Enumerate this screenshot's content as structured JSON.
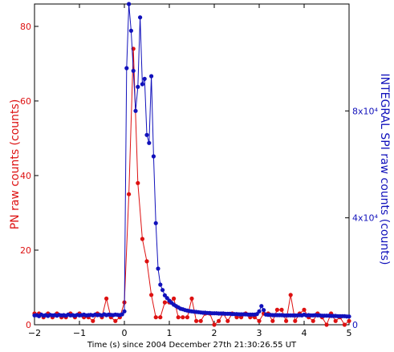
{
  "chart_data": {
    "type": "line",
    "xlabel": "Time (s) since 2004 December 27th 21:30:26.55 UT",
    "xlim": [
      -2,
      5
    ],
    "x_ticks": [
      "−2",
      "−1",
      "0",
      "1",
      "2",
      "3",
      "4",
      "5"
    ],
    "left_axis": {
      "label": "PN raw counts (counts)",
      "ylim": [
        0,
        86
      ],
      "ticks": [
        "0",
        "20",
        "40",
        "60",
        "80"
      ],
      "color": "#dd1111"
    },
    "right_axis": {
      "label": "INTEGRAL SPI raw counts (counts)",
      "ylim": [
        0,
        120000
      ],
      "ticks": [
        "0",
        "4x10⁴",
        "8x10⁴"
      ],
      "color": "#1111bb"
    },
    "series": [
      {
        "axis": "left",
        "color": "#dd1111",
        "x": [
          -2.0,
          -1.9,
          -1.8,
          -1.7,
          -1.6,
          -1.5,
          -1.4,
          -1.3,
          -1.2,
          -1.1,
          -1.0,
          -0.9,
          -0.8,
          -0.7,
          -0.6,
          -0.5,
          -0.4,
          -0.3,
          -0.2,
          -0.1,
          0.0,
          0.1,
          0.2,
          0.3,
          0.4,
          0.5,
          0.6,
          0.7,
          0.8,
          0.9,
          1.0,
          1.1,
          1.2,
          1.3,
          1.4,
          1.5,
          1.6,
          1.7,
          1.8,
          1.9,
          2.0,
          2.1,
          2.2,
          2.3,
          2.4,
          2.5,
          2.6,
          2.7,
          2.8,
          2.9,
          3.0,
          3.1,
          3.2,
          3.3,
          3.4,
          3.5,
          3.6,
          3.7,
          3.8,
          3.9,
          4.0,
          4.1,
          4.2,
          4.3,
          4.4,
          4.5,
          4.6,
          4.7,
          4.8,
          4.9,
          5.0
        ],
        "values": [
          3,
          3,
          2,
          3,
          2,
          3,
          2,
          2,
          3,
          2,
          3,
          2,
          2,
          1,
          3,
          2,
          7,
          2,
          1,
          2,
          6,
          35,
          74,
          38,
          23,
          17,
          8,
          2,
          2,
          6,
          6,
          7,
          2,
          2,
          2,
          7,
          1,
          1,
          3,
          3,
          0,
          1,
          3,
          1,
          3,
          2,
          2,
          3,
          2,
          2,
          1,
          3,
          3,
          1,
          4,
          4,
          1,
          8,
          1,
          3,
          4,
          2,
          1,
          3,
          2,
          0,
          3,
          1,
          2,
          0,
          1
        ]
      },
      {
        "axis": "right",
        "color": "#1111bb",
        "x": [
          -2.0,
          -1.95,
          -1.9,
          -1.85,
          -1.8,
          -1.75,
          -1.7,
          -1.65,
          -1.6,
          -1.55,
          -1.5,
          -1.45,
          -1.4,
          -1.35,
          -1.3,
          -1.25,
          -1.2,
          -1.15,
          -1.1,
          -1.05,
          -1.0,
          -0.95,
          -0.9,
          -0.85,
          -0.8,
          -0.75,
          -0.7,
          -0.65,
          -0.6,
          -0.55,
          -0.5,
          -0.45,
          -0.4,
          -0.35,
          -0.3,
          -0.25,
          -0.2,
          -0.15,
          -0.1,
          -0.05,
          0.0,
          0.05,
          0.1,
          0.15,
          0.2,
          0.25,
          0.3,
          0.35,
          0.4,
          0.45,
          0.5,
          0.55,
          0.6,
          0.65,
          0.7,
          0.75,
          0.8,
          0.85,
          0.9,
          0.95,
          1.0,
          1.05,
          1.1,
          1.15,
          1.2,
          1.25,
          1.3,
          1.35,
          1.4,
          1.45,
          1.5,
          1.55,
          1.6,
          1.65,
          1.7,
          1.75,
          1.8,
          1.85,
          1.9,
          1.95,
          2.0,
          2.05,
          2.1,
          2.15,
          2.2,
          2.25,
          2.3,
          2.35,
          2.4,
          2.45,
          2.5,
          2.55,
          2.6,
          2.65,
          2.7,
          2.75,
          2.8,
          2.85,
          2.9,
          2.95,
          3.0,
          3.05,
          3.1,
          3.15,
          3.2,
          3.25,
          3.3,
          3.35,
          3.4,
          3.45,
          3.5,
          3.55,
          3.6,
          3.65,
          3.7,
          3.75,
          3.8,
          3.85,
          3.9,
          3.95,
          4.0,
          4.05,
          4.1,
          4.15,
          4.2,
          4.25,
          4.3,
          4.35,
          4.4,
          4.45,
          4.5,
          4.55,
          4.6,
          4.65,
          4.7,
          4.75,
          4.8,
          4.85,
          4.9,
          4.95,
          5.0
        ],
        "values": [
          3500,
          3600,
          3200,
          3800,
          3400,
          3600,
          3300,
          3700,
          3500,
          3600,
          3400,
          3700,
          3500,
          3600,
          3400,
          3800,
          3500,
          3600,
          3400,
          3700,
          3500,
          3600,
          3800,
          3500,
          3600,
          3700,
          3500,
          3800,
          3600,
          3700,
          3500,
          3900,
          3600,
          3800,
          3700,
          3600,
          3800,
          3700,
          3600,
          3900,
          5000,
          96000,
          120000,
          110000,
          95000,
          80000,
          89000,
          115000,
          90000,
          92000,
          71000,
          68000,
          93000,
          63000,
          38000,
          21000,
          15000,
          13000,
          11000,
          10000,
          9000,
          8200,
          7500,
          7000,
          6500,
          6000,
          5800,
          5500,
          5300,
          5100,
          5000,
          4900,
          4800,
          4700,
          4600,
          4500,
          4500,
          4400,
          4400,
          4300,
          4300,
          4300,
          4200,
          4200,
          4200,
          4100,
          4100,
          4100,
          4000,
          4000,
          4000,
          3900,
          3900,
          3900,
          3900,
          3800,
          3800,
          3800,
          3800,
          4000,
          5000,
          7000,
          5500,
          3800,
          3700,
          3700,
          3600,
          3600,
          3600,
          3600,
          3600,
          3500,
          3500,
          3500,
          3500,
          3500,
          3500,
          3500,
          3600,
          3500,
          3800,
          3500,
          3600,
          3500,
          3500,
          3600,
          3500,
          3500,
          3400,
          3400,
          3400,
          3400,
          3300,
          3300,
          3300,
          3200,
          3200,
          3200,
          3200,
          3100,
          3100
        ]
      }
    ]
  }
}
